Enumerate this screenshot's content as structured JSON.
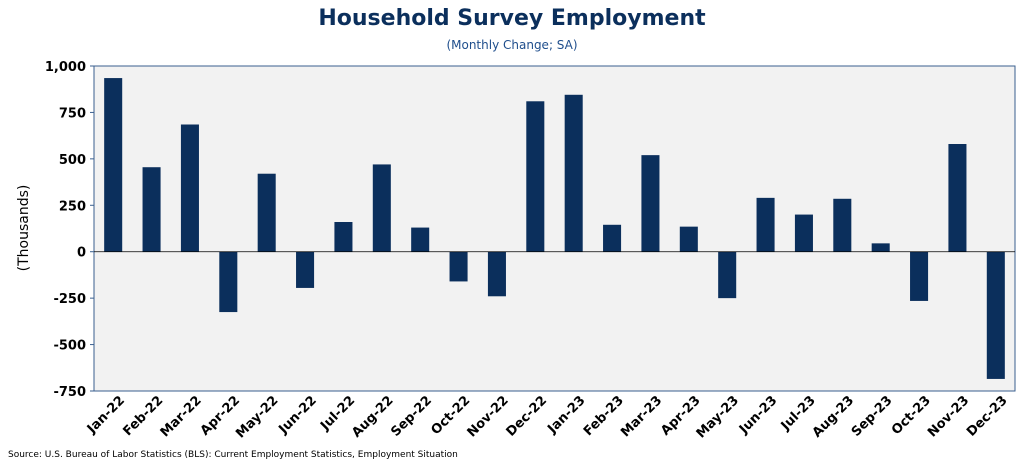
{
  "chart_data": {
    "type": "bar",
    "title": "Household Survey Employment",
    "subtitle": "(Monthly Change; SA)",
    "ylabel": "(Thousands)",
    "xlabel": "",
    "ylim": [
      -750,
      1000
    ],
    "yticks": [
      1000,
      750,
      500,
      250,
      0,
      -250,
      -500,
      -750
    ],
    "ytick_labels": [
      "1,000",
      "750",
      "500",
      "250",
      "0",
      "-250",
      "-500",
      "-750"
    ],
    "grid": false,
    "legend": "none",
    "categories": [
      "Jan-22",
      "Feb-22",
      "Mar-22",
      "Apr-22",
      "May-22",
      "Jun-22",
      "Jul-22",
      "Aug-22",
      "Sep-22",
      "Oct-22",
      "Nov-22",
      "Dec-22",
      "Jan-23",
      "Feb-23",
      "Mar-23",
      "Apr-23",
      "May-23",
      "Jun-23",
      "Jul-23",
      "Aug-23",
      "Sep-23",
      "Oct-23",
      "Nov-23",
      "Dec-23"
    ],
    "values": [
      935,
      455,
      685,
      -325,
      420,
      -195,
      160,
      470,
      130,
      -160,
      -240,
      810,
      845,
      145,
      520,
      135,
      -250,
      290,
      200,
      285,
      45,
      -265,
      580,
      -685
    ],
    "colors": {
      "bar": "#0b2f5c",
      "plot_bg": "#f2f2f2",
      "border": "#3a5f8f"
    }
  },
  "source": "Source: U.S. Bureau of Labor Statistics (BLS): Current Employment Statistics, Employment Situation"
}
